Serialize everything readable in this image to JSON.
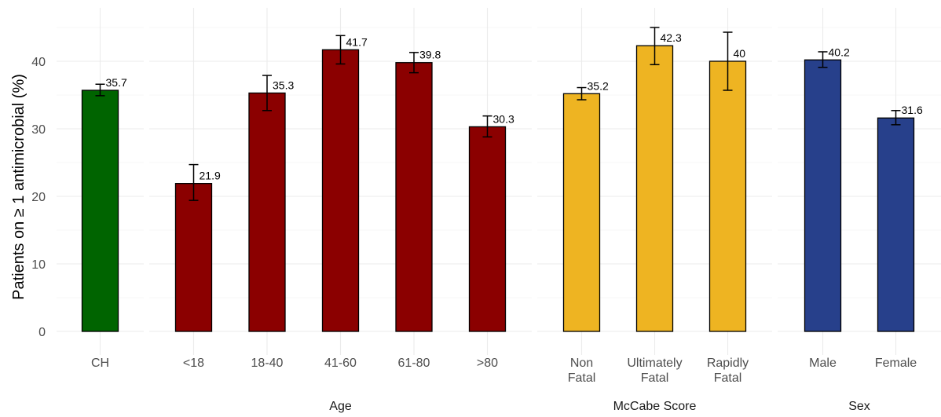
{
  "chart_data": {
    "type": "bar",
    "ylabel": "Patients on ≥ 1 antimicrobial (%)",
    "ylim": [
      0,
      46
    ],
    "y_ticks": [
      0,
      10,
      20,
      30,
      40
    ],
    "grid": true,
    "legend": "none",
    "panels": [
      {
        "name": "",
        "color": "#006400",
        "categories": [
          [
            "CH"
          ]
        ],
        "values": [
          35.7
        ],
        "error_low": [
          34.9
        ],
        "error_high": [
          36.6
        ],
        "labels": [
          "35.7"
        ]
      },
      {
        "name": "Age",
        "color": "#8b0000",
        "categories": [
          [
            "<18"
          ],
          [
            "18-40"
          ],
          [
            "41-60"
          ],
          [
            "61-80"
          ],
          [
            ">80"
          ]
        ],
        "values": [
          21.9,
          35.3,
          41.7,
          39.8,
          30.3
        ],
        "error_low": [
          19.4,
          32.7,
          39.6,
          38.3,
          28.8
        ],
        "error_high": [
          24.7,
          37.9,
          43.8,
          41.3,
          31.9
        ],
        "labels": [
          "21.9",
          "35.3",
          "41.7",
          "39.8",
          "30.3"
        ]
      },
      {
        "name": "McCabe Score",
        "color": "#eeb422",
        "categories": [
          [
            "Non",
            "Fatal"
          ],
          [
            "Ultimately",
            "Fatal"
          ],
          [
            "Rapidly",
            "Fatal"
          ]
        ],
        "values": [
          35.2,
          42.3,
          40.0
        ],
        "error_low": [
          34.3,
          39.5,
          35.7
        ],
        "error_high": [
          36.1,
          45.0,
          44.3
        ],
        "labels": [
          "35.2",
          "42.3",
          "40"
        ]
      },
      {
        "name": "Sex",
        "color": "#27408b",
        "categories": [
          [
            "Male"
          ],
          [
            "Female"
          ]
        ],
        "values": [
          40.2,
          31.6
        ],
        "error_low": [
          39.1,
          30.6
        ],
        "error_high": [
          41.4,
          32.7
        ],
        "labels": [
          "40.2",
          "31.6"
        ]
      }
    ]
  }
}
